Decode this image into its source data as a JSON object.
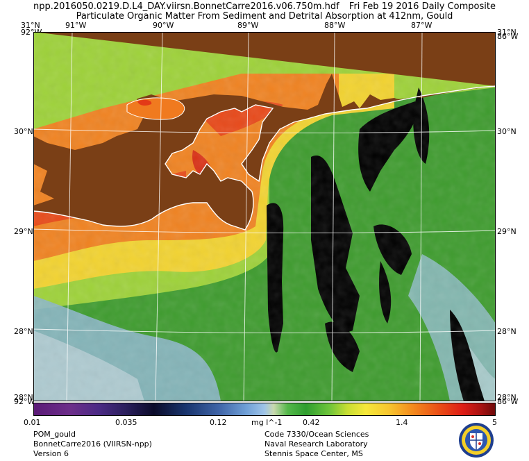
{
  "header": {
    "file_name": "npp.2016050.0219.D.L4_DAY.viirsn.BonnetCarre2016.v06.750m.hdf",
    "date": "Fri Feb 19 2016 Daily Composite",
    "title": "Particulate Organic Matter From Sediment and Detrital Absorption at 412nm, Gould"
  },
  "map": {
    "lon_ticks": [
      "91°W",
      "90°W",
      "89°W",
      "88°W",
      "87°W"
    ],
    "lat_ticks": [
      "30°N",
      "29°N",
      "28°N"
    ],
    "corner_top_left_lat": "31°N",
    "corner_top_left_lon": "92°W",
    "corner_top_right_lat": "31°N",
    "corner_top_right_lon": "86°W",
    "corner_bottom_left_lat": "28°N",
    "corner_bottom_left_lon": "92°W",
    "corner_bottom_right_lat": "28°N",
    "corner_bottom_right_lon": "86°W",
    "colors": {
      "land": "#7a3f16",
      "no_data": "#000000",
      "coastline": "#ffffff",
      "graticule": "#ffffff"
    }
  },
  "colorbar": {
    "labels": [
      "0.01",
      "0.035",
      "0.12",
      "0.42",
      "1.4",
      "5"
    ],
    "unit": "mg l^-1"
  },
  "footer": {
    "left": [
      "POM_gould",
      "BonnetCarre2016 (VIIRSN-npp)",
      "Version 6"
    ],
    "right": [
      "Code 7330/Ocean Sciences",
      "Naval Research Laboratory",
      "Stennis Space Center, MS"
    ]
  }
}
